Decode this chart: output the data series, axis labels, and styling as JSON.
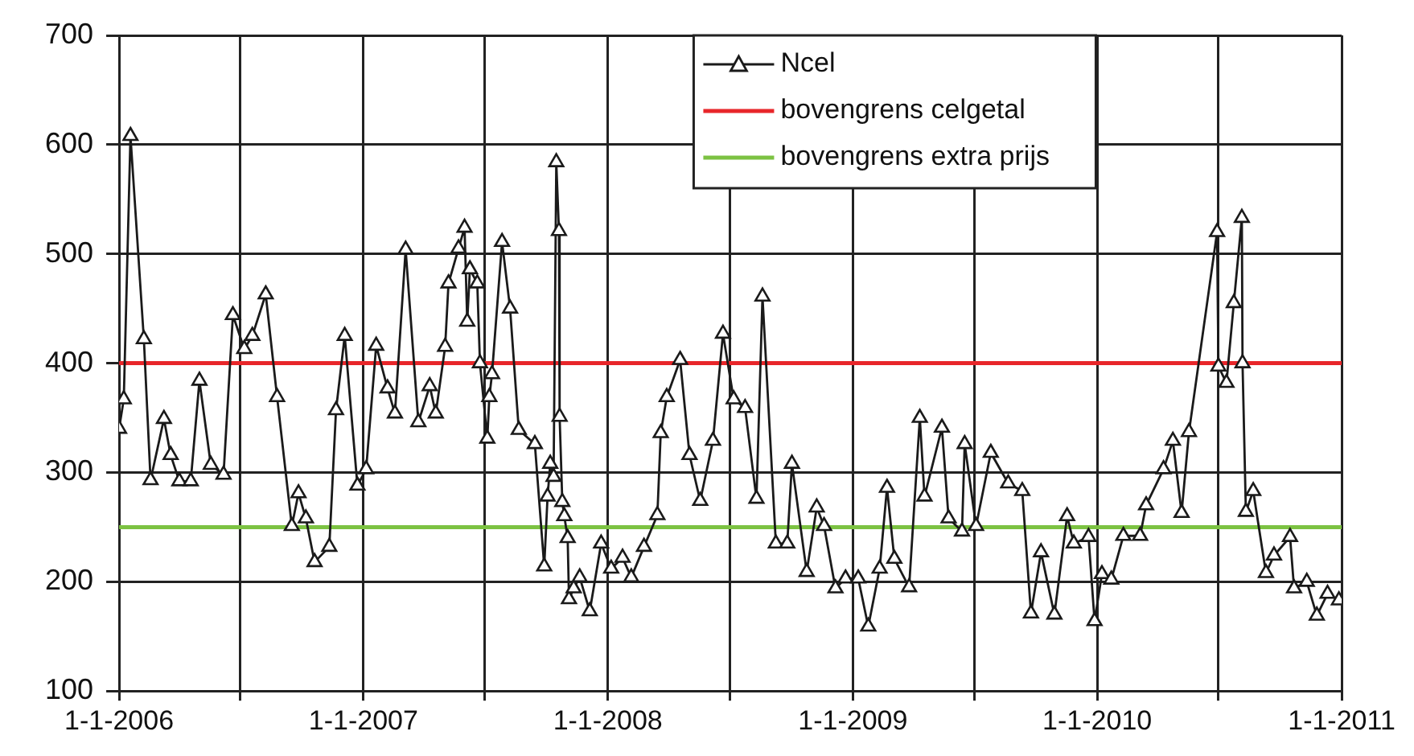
{
  "chart_data": {
    "type": "line",
    "xlim": [
      "2006-01-01",
      "2011-01-01"
    ],
    "xticks": [
      {
        "value": "2006-01-01",
        "label": "1-1-2006"
      },
      {
        "value": "2006-07-01",
        "label": null
      },
      {
        "value": "2007-01-01",
        "label": "1-1-2007"
      },
      {
        "value": "2007-07-01",
        "label": null
      },
      {
        "value": "2008-01-01",
        "label": "1-1-2008"
      },
      {
        "value": "2008-07-01",
        "label": null
      },
      {
        "value": "2009-01-01",
        "label": "1-1-2009"
      },
      {
        "value": "2009-07-01",
        "label": null
      },
      {
        "value": "2010-01-01",
        "label": "1-1-2010"
      },
      {
        "value": "2010-07-01",
        "label": null
      },
      {
        "value": "2011-01-01",
        "label": "1-1-2011"
      }
    ],
    "ylim": [
      100,
      700
    ],
    "yticks": [
      100,
      200,
      300,
      400,
      500,
      600,
      700
    ],
    "grid": true,
    "legend": "top right",
    "series": [
      {
        "name": "Ncel",
        "color": "#1a1a1a",
        "marker": "triangle",
        "x": [
          "2006-01-01",
          "2006-01-08",
          "2006-01-18",
          "2006-02-07",
          "2006-02-17",
          "2006-03-09",
          "2006-03-19",
          "2006-04-01",
          "2006-04-18",
          "2006-05-01",
          "2006-05-18",
          "2006-06-06",
          "2006-06-20",
          "2006-07-07",
          "2006-07-19",
          "2006-08-08",
          "2006-08-25",
          "2006-09-16",
          "2006-09-26",
          "2006-10-07",
          "2006-10-20",
          "2006-11-11",
          "2006-11-21",
          "2006-12-04",
          "2006-12-23",
          "2007-01-05",
          "2007-01-20",
          "2007-02-06",
          "2007-02-17",
          "2007-03-05",
          "2007-03-24",
          "2007-04-10",
          "2007-04-19",
          "2007-05-03",
          "2007-05-08",
          "2007-05-23",
          "2007-06-01",
          "2007-06-05",
          "2007-06-09",
          "2007-06-20",
          "2007-06-24",
          "2007-07-05",
          "2007-07-08",
          "2007-07-12",
          "2007-07-27",
          "2007-08-08",
          "2007-08-21",
          "2007-09-14",
          "2007-09-28",
          "2007-10-03",
          "2007-10-07",
          "2007-10-12",
          "2007-10-16",
          "2007-10-20",
          "2007-10-21",
          "2007-10-25",
          "2007-10-28",
          "2007-11-02",
          "2007-11-04",
          "2007-11-11",
          "2007-11-20",
          "2007-12-05",
          "2007-12-22",
          "2008-01-06",
          "2008-01-23",
          "2008-02-05",
          "2008-02-24",
          "2008-03-15",
          "2008-03-20",
          "2008-03-29",
          "2008-04-18",
          "2008-05-02",
          "2008-05-18",
          "2008-06-06",
          "2008-06-21",
          "2008-07-07",
          "2008-07-24",
          "2008-08-10",
          "2008-08-19",
          "2008-09-08",
          "2008-09-25",
          "2008-10-02",
          "2008-10-24",
          "2008-11-08",
          "2008-11-19",
          "2008-12-06",
          "2008-12-21",
          "2009-01-09",
          "2009-01-24",
          "2009-02-10",
          "2009-02-21",
          "2009-03-04",
          "2009-03-26",
          "2009-04-11",
          "2009-04-18",
          "2009-05-14",
          "2009-05-24",
          "2009-06-13",
          "2009-06-17",
          "2009-07-04",
          "2009-07-26",
          "2009-08-21",
          "2009-09-11",
          "2009-09-24",
          "2009-10-09",
          "2009-10-29",
          "2009-11-17",
          "2009-11-27",
          "2009-12-19",
          "2009-12-28",
          "2010-01-08",
          "2010-01-22",
          "2010-02-09",
          "2010-03-06",
          "2010-03-15",
          "2010-04-10",
          "2010-04-24",
          "2010-05-07",
          "2010-05-18",
          "2010-06-29",
          "2010-07-01",
          "2010-07-13",
          "2010-07-24",
          "2010-08-05",
          "2010-08-06",
          "2010-08-11",
          "2010-08-22",
          "2010-09-10",
          "2010-09-22",
          "2010-10-16",
          "2010-10-22",
          "2010-11-10",
          "2010-11-25",
          "2010-12-11",
          "2010-12-28"
        ],
        "values": [
          340,
          367,
          608,
          422,
          293,
          349,
          316,
          292,
          292,
          384,
          307,
          298,
          444,
          413,
          425,
          463,
          369,
          251,
          281,
          258,
          218,
          232,
          357,
          425,
          288,
          303,
          416,
          377,
          354,
          504,
          346,
          379,
          354,
          415,
          473,
          505,
          524,
          438,
          486,
          473,
          400,
          331,
          369,
          390,
          511,
          450,
          339,
          326,
          214,
          278,
          308,
          296,
          584,
          521,
          351,
          273,
          260,
          240,
          184,
          194,
          204,
          173,
          235,
          212,
          222,
          204,
          232,
          261,
          336,
          369,
          403,
          316,
          274,
          329,
          427,
          367,
          359,
          276,
          461,
          235,
          235,
          308,
          209,
          268,
          251,
          194,
          203,
          203,
          159,
          212,
          286,
          221,
          195,
          350,
          278,
          341,
          258,
          246,
          326,
          251,
          318,
          290,
          283,
          171,
          227,
          170,
          260,
          235,
          241,
          164,
          207,
          202,
          242,
          242,
          270,
          303,
          329,
          263,
          337,
          520,
          397,
          382,
          455,
          533,
          400,
          264,
          283,
          208,
          224,
          241,
          194,
          200,
          169,
          189,
          183
        ]
      },
      {
        "name": "bovengrens celgetal",
        "color": "#e8262a",
        "marker": "none",
        "x": [
          "2006-01-01",
          "2011-01-01"
        ],
        "values": [
          400,
          400
        ]
      },
      {
        "name": "bovengrens extra prijs",
        "color": "#7cc242",
        "marker": "none",
        "x": [
          "2006-01-01",
          "2011-01-01"
        ],
        "values": [
          250,
          250
        ]
      }
    ]
  }
}
